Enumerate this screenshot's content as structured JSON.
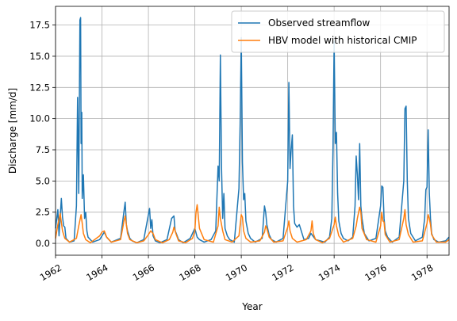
{
  "chart_data": {
    "type": "line",
    "xlabel": "Year",
    "ylabel": "Discharge [mm/d]",
    "xlim": [
      1962.0,
      1978.95
    ],
    "ylim": [
      -0.95,
      19.0
    ],
    "x_ticks": [
      1962,
      1964,
      1966,
      1968,
      1970,
      1972,
      1974,
      1976,
      1978
    ],
    "y_ticks": [
      0.0,
      2.5,
      5.0,
      7.5,
      10.0,
      12.5,
      15.0,
      17.5
    ],
    "y_tick_labels": [
      "0.0",
      "2.5",
      "5.0",
      "7.5",
      "10.0",
      "12.5",
      "15.0",
      "17.5"
    ],
    "grid": true,
    "legend_position": "top-right",
    "series": [
      {
        "name": "Observed streamflow",
        "color": "#1f77b4",
        "x": [
          1962.0,
          1962.1,
          1962.15,
          1962.25,
          1962.3,
          1962.35,
          1962.4,
          1962.45,
          1962.6,
          1962.8,
          1962.9,
          1962.95,
          1963.0,
          1963.05,
          1963.08,
          1963.1,
          1963.13,
          1963.15,
          1963.2,
          1963.25,
          1963.3,
          1963.35,
          1963.4,
          1963.6,
          1963.9,
          1964.1,
          1964.2,
          1964.4,
          1964.8,
          1964.95,
          1965.0,
          1965.05,
          1965.1,
          1965.2,
          1965.3,
          1965.5,
          1965.8,
          1966.05,
          1966.1,
          1966.15,
          1966.2,
          1966.3,
          1966.5,
          1966.8,
          1967.0,
          1967.1,
          1967.15,
          1967.2,
          1967.3,
          1967.5,
          1967.8,
          1968.0,
          1968.1,
          1968.2,
          1968.4,
          1968.7,
          1968.9,
          1969.0,
          1969.05,
          1969.1,
          1969.15,
          1969.2,
          1969.25,
          1969.3,
          1969.4,
          1969.5,
          1969.7,
          1969.9,
          1969.95,
          1970.0,
          1970.05,
          1970.1,
          1970.15,
          1970.2,
          1970.3,
          1970.4,
          1970.6,
          1970.9,
          1971.0,
          1971.05,
          1971.1,
          1971.2,
          1971.3,
          1971.5,
          1971.8,
          1972.0,
          1972.05,
          1972.1,
          1972.15,
          1972.2,
          1972.25,
          1972.3,
          1972.4,
          1972.5,
          1972.7,
          1972.9,
          1973.0,
          1973.2,
          1973.4,
          1973.6,
          1973.8,
          1973.9,
          1973.95,
          1974.0,
          1974.05,
          1974.1,
          1974.15,
          1974.2,
          1974.3,
          1974.4,
          1974.6,
          1974.8,
          1974.9,
          1974.95,
          1975.0,
          1975.05,
          1975.1,
          1975.15,
          1975.2,
          1975.3,
          1975.5,
          1975.8,
          1976.0,
          1976.05,
          1976.1,
          1976.15,
          1976.2,
          1976.3,
          1976.5,
          1976.8,
          1977.0,
          1977.05,
          1977.1,
          1977.15,
          1977.2,
          1977.3,
          1977.5,
          1977.8,
          1977.9,
          1977.95,
          1978.0,
          1978.05,
          1978.1,
          1978.15,
          1978.2,
          1978.3,
          1978.5,
          1978.8,
          1978.95
        ],
        "y": [
          1.2,
          2.7,
          0.6,
          3.6,
          2.1,
          1.4,
          1.3,
          0.4,
          0.1,
          0.2,
          3.0,
          11.7,
          4.0,
          17.9,
          18.1,
          8.0,
          10.5,
          3.6,
          5.5,
          2.0,
          2.5,
          1.0,
          0.5,
          0.1,
          0.3,
          0.9,
          0.5,
          0.1,
          0.4,
          2.6,
          3.3,
          1.5,
          1.0,
          0.4,
          0.2,
          0.05,
          0.3,
          2.8,
          1.2,
          1.9,
          0.6,
          0.2,
          0.05,
          0.3,
          2.0,
          2.2,
          1.0,
          0.8,
          0.3,
          0.05,
          0.4,
          1.2,
          0.5,
          0.3,
          0.1,
          0.3,
          1.0,
          6.2,
          5.0,
          15.1,
          6.0,
          2.0,
          4.0,
          1.2,
          0.6,
          0.3,
          0.1,
          4.4,
          9.5,
          16.5,
          6.5,
          3.5,
          4.0,
          1.8,
          0.8,
          0.4,
          0.1,
          0.4,
          3.0,
          2.5,
          1.5,
          0.7,
          0.3,
          0.1,
          0.4,
          5.0,
          12.9,
          6.0,
          7.5,
          8.7,
          3.0,
          1.6,
          1.3,
          1.5,
          0.3,
          0.4,
          0.8,
          0.3,
          0.2,
          0.1,
          0.5,
          2.0,
          7.5,
          16.2,
          8.0,
          8.9,
          4.0,
          1.8,
          0.8,
          0.4,
          0.2,
          0.5,
          3.0,
          7.0,
          5.5,
          3.5,
          8.0,
          3.0,
          2.0,
          0.8,
          0.2,
          0.4,
          3.0,
          4.6,
          4.5,
          2.0,
          1.0,
          0.5,
          0.1,
          0.5,
          5.0,
          10.8,
          11.0,
          5.0,
          2.0,
          0.8,
          0.2,
          0.5,
          2.0,
          4.3,
          4.5,
          9.1,
          4.0,
          2.0,
          0.8,
          0.3,
          0.1,
          0.2,
          0.5
        ]
      },
      {
        "name": "HBV model with historical CMIP",
        "color": "#ff7f0e",
        "x": [
          1962.0,
          1962.1,
          1962.2,
          1962.3,
          1962.4,
          1962.6,
          1962.9,
          1963.0,
          1963.1,
          1963.15,
          1963.2,
          1963.3,
          1963.5,
          1963.9,
          1964.0,
          1964.1,
          1964.2,
          1964.4,
          1964.8,
          1964.95,
          1965.0,
          1965.05,
          1965.1,
          1965.2,
          1965.5,
          1965.8,
          1966.0,
          1966.1,
          1966.2,
          1966.3,
          1966.6,
          1966.9,
          1967.05,
          1967.1,
          1967.2,
          1967.3,
          1967.6,
          1967.9,
          1968.0,
          1968.05,
          1968.1,
          1968.2,
          1968.4,
          1968.8,
          1969.0,
          1969.05,
          1969.1,
          1969.2,
          1969.3,
          1969.6,
          1969.9,
          1970.0,
          1970.05,
          1970.1,
          1970.2,
          1970.4,
          1970.8,
          1971.0,
          1971.05,
          1971.1,
          1971.2,
          1971.4,
          1971.8,
          1972.0,
          1972.05,
          1972.1,
          1972.2,
          1972.4,
          1972.8,
          1973.0,
          1973.05,
          1973.1,
          1973.2,
          1973.5,
          1973.8,
          1974.0,
          1974.05,
          1974.1,
          1974.2,
          1974.4,
          1974.8,
          1974.95,
          1975.0,
          1975.1,
          1975.15,
          1975.2,
          1975.4,
          1975.8,
          1976.0,
          1976.05,
          1976.1,
          1976.15,
          1976.2,
          1976.4,
          1976.8,
          1977.0,
          1977.05,
          1977.1,
          1977.2,
          1977.4,
          1977.8,
          1978.0,
          1978.05,
          1978.1,
          1978.15,
          1978.2,
          1978.4,
          1978.8,
          1978.95
        ],
        "y": [
          0.4,
          1.5,
          2.4,
          1.0,
          0.4,
          0.1,
          0.4,
          1.4,
          2.3,
          1.6,
          0.8,
          0.3,
          0.05,
          0.6,
          0.9,
          1.0,
          0.5,
          0.1,
          0.3,
          1.8,
          2.2,
          1.5,
          0.8,
          0.3,
          0.05,
          0.2,
          0.7,
          1.0,
          0.8,
          0.3,
          0.05,
          0.3,
          0.9,
          1.3,
          0.7,
          0.2,
          0.05,
          0.4,
          1.0,
          2.5,
          3.1,
          1.2,
          0.3,
          0.1,
          1.4,
          2.9,
          2.0,
          1.0,
          0.3,
          0.1,
          0.6,
          2.3,
          2.1,
          1.0,
          0.4,
          0.1,
          0.2,
          0.9,
          1.4,
          1.2,
          0.5,
          0.1,
          0.2,
          1.3,
          1.8,
          1.0,
          0.4,
          0.1,
          0.3,
          1.0,
          1.8,
          0.8,
          0.3,
          0.05,
          0.4,
          1.5,
          2.1,
          1.4,
          0.6,
          0.1,
          0.4,
          1.4,
          2.0,
          2.9,
          2.5,
          1.2,
          0.3,
          0.1,
          1.4,
          2.5,
          1.8,
          1.7,
          0.7,
          0.1,
          0.3,
          2.0,
          2.7,
          1.5,
          0.7,
          0.1,
          0.2,
          1.6,
          2.3,
          2.0,
          1.5,
          0.7,
          0.1,
          0.1,
          0.3
        ]
      }
    ]
  }
}
